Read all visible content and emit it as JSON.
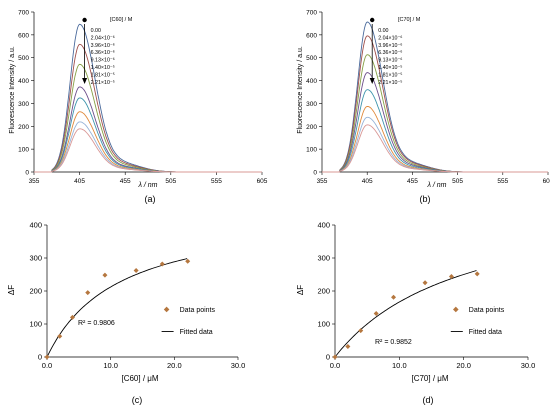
{
  "chart_data": [
    {
      "panel": "(a)",
      "type": "line",
      "xlabel": "λ / nm",
      "ylabel": "Fluorescence Intensity / a.u.",
      "xlim": [
        355,
        605
      ],
      "ylim": [
        0,
        700
      ],
      "xticks": [
        "355",
        "405",
        "455",
        "505",
        "555",
        "605"
      ],
      "yticks": [
        "0",
        "100",
        "200",
        "300",
        "400",
        "500",
        "600",
        "700"
      ],
      "legend_title": "[C60] / M",
      "legend_entries": [
        "0.00",
        "2.04×10⁻⁶",
        "3.96×10⁻⁶",
        "6.36×10⁻⁶",
        "9.13×10⁻⁶",
        "1.40×10⁻⁵",
        "1.81×10⁻⁵",
        "2.21×10⁻⁵"
      ],
      "peak_x": 405,
      "series": [
        {
          "name": "0.00",
          "peak": 642,
          "color": "#4a6a9c"
        },
        {
          "name": "2.04×10⁻⁶",
          "peak": 555,
          "color": "#a0504c"
        },
        {
          "name": "3.96×10⁻⁶",
          "peak": 468,
          "color": "#86a046"
        },
        {
          "name": "6.36×10⁻⁶",
          "peak": 370,
          "color": "#6d4f8c"
        },
        {
          "name": "9.13×10⁻⁶",
          "peak": 322,
          "color": "#3f95ad"
        },
        {
          "name": "1.40×10⁻⁵",
          "peak": 262,
          "color": "#e08a3c"
        },
        {
          "name": "1.81×10⁻⁵",
          "peak": 218,
          "color": "#97b3d7"
        },
        {
          "name": "2.21×10⁻⁵",
          "peak": 188,
          "color": "#d99896"
        }
      ],
      "caption": "(a)"
    },
    {
      "panel": "(b)",
      "type": "line",
      "xlabel": "λ / nm",
      "ylabel": "Fluorescence Intensity / a.u.",
      "xlim": [
        355,
        605
      ],
      "ylim": [
        0,
        700
      ],
      "xticks": [
        "355",
        "405",
        "455",
        "505",
        "555",
        "605"
      ],
      "yticks": [
        "0",
        "100",
        "200",
        "300",
        "400",
        "500",
        "600",
        "700"
      ],
      "legend_title": "[C70] / M",
      "legend_entries": [
        "0.00",
        "2.04×10⁻⁶",
        "3.96×10⁻⁶",
        "6.36×10⁻⁶",
        "9.13×10⁻⁶",
        "1.40×10⁻⁵",
        "1.81×10⁻⁵",
        "2.21×10⁻⁵"
      ],
      "peak_x": 405,
      "series": [
        {
          "name": "0.00",
          "peak": 652,
          "color": "#4a6a9c"
        },
        {
          "name": "2.04×10⁻⁶",
          "peak": 592,
          "color": "#a0504c"
        },
        {
          "name": "3.96×10⁻⁶",
          "peak": 510,
          "color": "#86a046"
        },
        {
          "name": "6.36×10⁻⁶",
          "peak": 432,
          "color": "#6d4f8c"
        },
        {
          "name": "9.13×10⁻⁶",
          "peak": 358,
          "color": "#3f95ad"
        },
        {
          "name": "1.40×10⁻⁵",
          "peak": 285,
          "color": "#e08a3c"
        },
        {
          "name": "1.81×10⁻⁵",
          "peak": 238,
          "color": "#97b3d7"
        },
        {
          "name": "2.21×10⁻⁵",
          "peak": 205,
          "color": "#d99896"
        }
      ],
      "caption": "(b)"
    },
    {
      "panel": "(c)",
      "type": "scatter",
      "xlabel": "[C60] / μM",
      "ylabel": "ΔF",
      "xlim": [
        0,
        30
      ],
      "ylim": [
        0,
        400
      ],
      "xticks": [
        "0.0",
        "10.0",
        "20.0",
        "30.0"
      ],
      "yticks": [
        "0",
        "100",
        "200",
        "300",
        "400"
      ],
      "points": [
        {
          "x": 0,
          "y": 0
        },
        {
          "x": 2.0,
          "y": 63
        },
        {
          "x": 4.0,
          "y": 120
        },
        {
          "x": 6.4,
          "y": 195
        },
        {
          "x": 9.1,
          "y": 248
        },
        {
          "x": 14.0,
          "y": 262
        },
        {
          "x": 18.1,
          "y": 282
        },
        {
          "x": 22.1,
          "y": 290
        }
      ],
      "fit": {
        "Fmax": 450,
        "K": 11.2
      },
      "legend_entries": [
        "Data points",
        "Fitted data"
      ],
      "annotation": "R² = 0.9806",
      "caption": "(c)"
    },
    {
      "panel": "(d)",
      "type": "scatter",
      "xlabel": "[C70] / μM",
      "ylabel": "ΔF",
      "xlim": [
        0,
        30
      ],
      "ylim": [
        0,
        400
      ],
      "xticks": [
        "0.0",
        "10.0",
        "20.0",
        "30.0"
      ],
      "yticks": [
        "0",
        "100",
        "200",
        "300",
        "400"
      ],
      "points": [
        {
          "x": 0,
          "y": 0
        },
        {
          "x": 2.0,
          "y": 32
        },
        {
          "x": 4.0,
          "y": 80
        },
        {
          "x": 6.4,
          "y": 132
        },
        {
          "x": 9.1,
          "y": 181
        },
        {
          "x": 14.0,
          "y": 225
        },
        {
          "x": 18.1,
          "y": 244
        },
        {
          "x": 22.1,
          "y": 252
        }
      ],
      "fit": {
        "Fmax": 500,
        "K": 20
      },
      "legend_entries": [
        "Data points",
        "Fitted data"
      ],
      "annotation": "R² = 0.9852",
      "caption": "(d)"
    }
  ]
}
